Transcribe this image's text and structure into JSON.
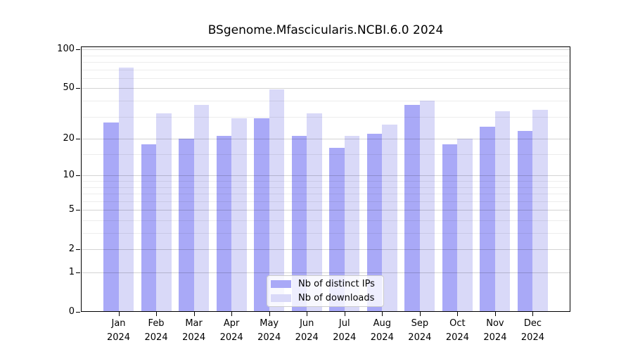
{
  "figure": {
    "background": "#ffffff"
  },
  "chart_data": {
    "type": "bar",
    "title": "BSgenome.Mfascicularis.NCBI.6.0 2024",
    "categories": [
      "Jan",
      "Feb",
      "Mar",
      "Apr",
      "May",
      "Jun",
      "Jul",
      "Aug",
      "Sep",
      "Oct",
      "Nov",
      "Dec"
    ],
    "category_year": "2024",
    "series": [
      {
        "name": "Nb of distinct IPs",
        "color": "#a9a9f7",
        "values": [
          27,
          18,
          20,
          21,
          29,
          21,
          17,
          22,
          37,
          18,
          25,
          23
        ]
      },
      {
        "name": "Nb of downloads",
        "color": "#d9d9f8",
        "values": [
          72,
          32,
          37,
          29,
          49,
          32,
          21,
          26,
          40,
          20,
          33,
          34
        ]
      }
    ],
    "xlabel": "",
    "ylabel": "",
    "yscale": "log10(1+x)",
    "ylim": [
      0,
      100
    ],
    "yticks_major": [
      0,
      1,
      2,
      5,
      10,
      20,
      50,
      100
    ],
    "yticks_minor": [
      3,
      4,
      6,
      7,
      8,
      9,
      15,
      30,
      40,
      60,
      70,
      80,
      90
    ],
    "grid": "horizontal",
    "legend_position": "bottom-center",
    "legend_border_color": "#cccccc"
  }
}
